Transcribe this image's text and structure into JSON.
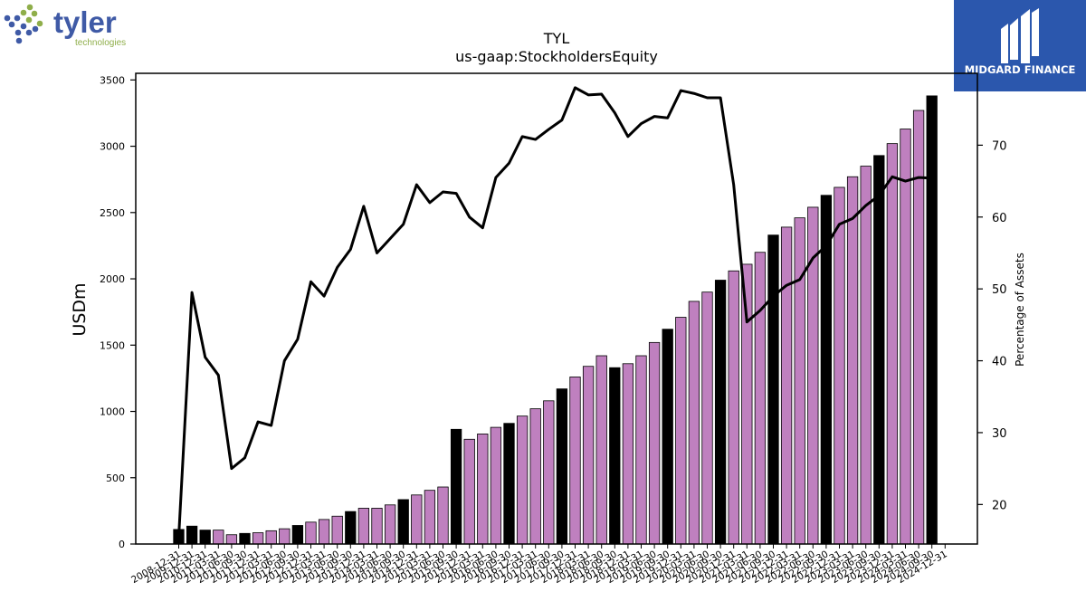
{
  "branding": {
    "left_logo_text": "tyler",
    "left_logo_subtext": "technologies",
    "left_logo_colors": [
      "#3f5aa6",
      "#8fae4a"
    ],
    "right_logo_text": "MIDGARD FINANCE",
    "right_logo_bg": "#2b57ad"
  },
  "chart_data": {
    "type": "bar",
    "title": "TYL",
    "subtitle": "us-gaap:StockholdersEquity",
    "ylabel": "USDm",
    "y2label": "Percentage of Assets",
    "ylim": [
      0,
      3550
    ],
    "y2lim": [
      14.5,
      80
    ],
    "yticks": [
      0,
      500,
      1000,
      1500,
      2000,
      2500,
      3000,
      3500
    ],
    "y2ticks": [
      20,
      30,
      40,
      50,
      60,
      70
    ],
    "colors": {
      "annual": "#000000",
      "quarterly": "#bf80bf",
      "line": "#000000"
    },
    "categories": [
      "2008-12-31",
      "2009-12-31",
      "2010-12-31",
      "2011-03-31",
      "2011-06-30",
      "2011-09-30",
      "2011-12-31",
      "2012-03-31",
      "2012-06-30",
      "2012-09-30",
      "2012-12-31",
      "2013-03-31",
      "2013-06-30",
      "2013-09-30",
      "2013-12-31",
      "2014-03-31",
      "2014-06-30",
      "2014-09-30",
      "2014-12-31",
      "2015-03-31",
      "2015-06-30",
      "2015-09-30",
      "2015-12-31",
      "2016-03-31",
      "2016-06-30",
      "2016-09-30",
      "2016-12-31",
      "2017-03-31",
      "2017-06-30",
      "2017-09-30",
      "2017-12-31",
      "2018-03-31",
      "2018-06-30",
      "2018-09-30",
      "2018-12-31",
      "2019-03-31",
      "2019-06-30",
      "2019-09-30",
      "2019-12-31",
      "2020-03-31",
      "2020-06-30",
      "2020-09-30",
      "2020-12-31",
      "2021-03-31",
      "2021-06-30",
      "2021-09-30",
      "2021-12-31",
      "2022-03-31",
      "2022-06-30",
      "2022-09-30",
      "2022-12-31",
      "2023-03-31",
      "2023-06-30",
      "2023-09-30",
      "2023-12-31",
      "2024-03-31",
      "2024-06-30",
      "2024-09-30",
      "2024-12-31"
    ],
    "series": [
      {
        "values": [
          110,
          135,
          105,
          105,
          70,
          80,
          85,
          100,
          115,
          140,
          165,
          185,
          210,
          245,
          270,
          270,
          295,
          335,
          370,
          405,
          430,
          865,
          790,
          830,
          880,
          910,
          965,
          1020,
          1080,
          1170,
          1260,
          1340,
          1420,
          1330,
          1360,
          1420,
          1520,
          1620,
          1710,
          1830,
          1900,
          1990,
          2060,
          2110,
          2200,
          2330,
          2390,
          2460,
          2540,
          2630,
          2690,
          2770,
          2850,
          2930,
          3020,
          3130,
          3270,
          3380,
          0
        ],
        "annual": [
          true,
          true,
          true,
          false,
          false,
          true,
          false,
          false,
          false,
          true,
          false,
          false,
          false,
          true,
          false,
          false,
          false,
          true,
          false,
          false,
          false,
          true,
          false,
          false,
          false,
          true,
          false,
          false,
          false,
          true,
          false,
          false,
          false,
          true,
          false,
          false,
          false,
          true,
          false,
          false,
          false,
          true,
          false,
          false,
          false,
          true,
          false,
          false,
          false,
          true,
          false,
          false,
          false,
          true,
          false,
          false,
          false,
          true,
          false
        ]
      },
      {
        "name": "Percentage of Assets",
        "values": [
          15.5,
          49.5,
          40.5,
          38,
          25,
          26.5,
          31.5,
          31,
          40,
          43,
          51,
          49,
          53,
          55.5,
          61.5,
          55,
          57,
          59,
          64.5,
          62,
          63.5,
          63.3,
          60,
          58.5,
          65.5,
          67.5,
          71.2,
          70.8,
          72.2,
          73.5,
          78,
          77,
          77.1,
          74.5,
          71.2,
          73,
          74,
          73.8,
          77.6,
          77.2,
          76.6,
          76.6,
          64.5,
          45.4,
          47,
          49,
          50.5,
          51.3,
          54.3,
          56,
          59,
          59.8,
          61.6,
          63,
          65.6,
          65,
          65.5,
          65.4,
          null
        ]
      }
    ],
    "grid": false,
    "legend": "none"
  }
}
